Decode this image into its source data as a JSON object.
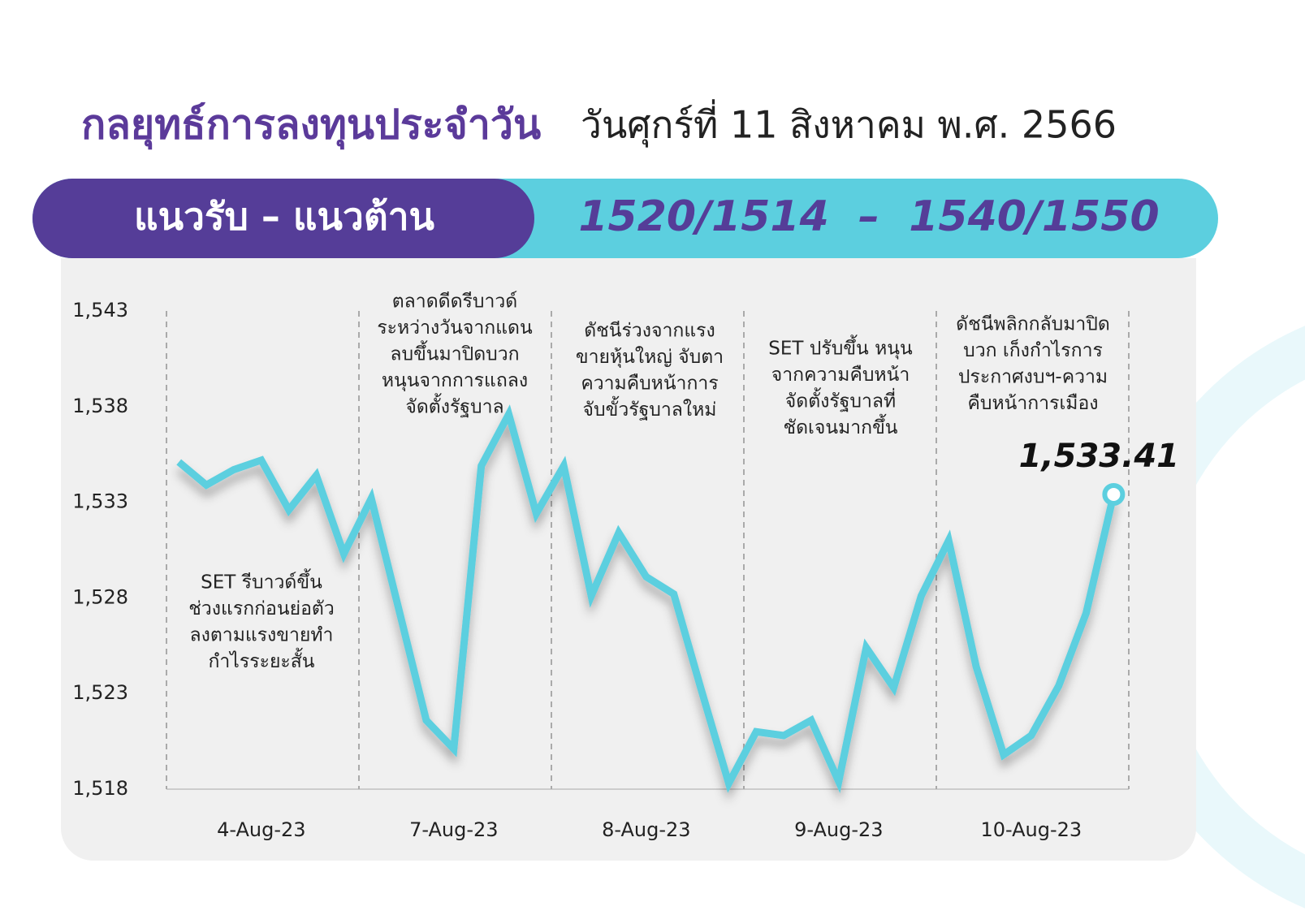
{
  "header": {
    "title": "กลยุทธ์การลงทุนประจำวัน",
    "date": "วันศุกร์ที่ 11 สิงหาคม พ.ศ. 2566"
  },
  "banner": {
    "label": "แนวรับ – แนวต้าน",
    "levels": "1520/1514  –  1540/1550"
  },
  "chart_data": {
    "type": "line",
    "categories": [
      null,
      null,
      null,
      "4-Aug-23",
      null,
      null,
      null,
      null,
      null,
      null,
      "7-Aug-23",
      null,
      null,
      null,
      null,
      null,
      null,
      "8-Aug-23",
      null,
      null,
      null,
      null,
      null,
      null,
      "9-Aug-23",
      null,
      null,
      null,
      null,
      null,
      null,
      "10-Aug-23",
      null,
      null,
      null
    ],
    "series": [
      {
        "color": "#5ccfdf",
        "values": [
          1535.1,
          1533.9,
          1534.7,
          1535.2,
          1532.6,
          1534.4,
          1530.3,
          1533.2,
          1527.4,
          1521.6,
          1520.1,
          1534.9,
          1537.6,
          1532.4,
          1534.9,
          1528.1,
          1531.4,
          1529.1,
          1528.2,
          1523.2,
          1518.3,
          1521.0,
          1520.8,
          1521.6,
          1518.4,
          1525.4,
          1523.3,
          1528.1,
          1531.0,
          1524.4,
          1519.8,
          1520.8,
          1523.4,
          1527.2,
          1533.41
        ]
      }
    ],
    "last_value_label": "1,533.41",
    "ylim": [
      1518,
      1543
    ],
    "yticks": [
      {
        "value": 1518,
        "label": "1,518"
      },
      {
        "value": 1523,
        "label": "1,523"
      },
      {
        "value": 1528,
        "label": "1,528"
      },
      {
        "value": 1533,
        "label": "1,533"
      },
      {
        "value": 1538,
        "label": "1,538"
      },
      {
        "value": 1543,
        "label": "1,543"
      }
    ],
    "annotations": [
      [
        "SET รีบาวด์ขึ้น",
        "ช่วงแรกก่อนย่อตัว",
        "ลงตามแรงขายทำ",
        "กำไรระยะสั้น"
      ],
      [
        "ตลาดดีดรีบาวด์",
        "ระหว่างวันจากแดน",
        "ลบขึ้นมาปิดบวก",
        "หนุนจากการแถลง",
        "จัดตั้งรัฐบาล"
      ],
      [
        "ดัชนีร่วงจากแรง",
        "ขายหุ้นใหญ่ จับตา",
        "ความคืบหน้าการ",
        "จับขั้วรัฐบาลใหม่"
      ],
      [
        "SET ปรับขึ้น หนุน",
        "จากความคืบหน้า",
        "จัดตั้งรัฐบาลที่",
        "ชัดเจนมากขึ้น"
      ],
      [
        "ดัชนีพลิกกลับมาปิด",
        "บวก เก็งกำไรการ",
        "ประกาศงบฯ-ความ",
        "คืบหน้าการเมือง"
      ]
    ]
  }
}
